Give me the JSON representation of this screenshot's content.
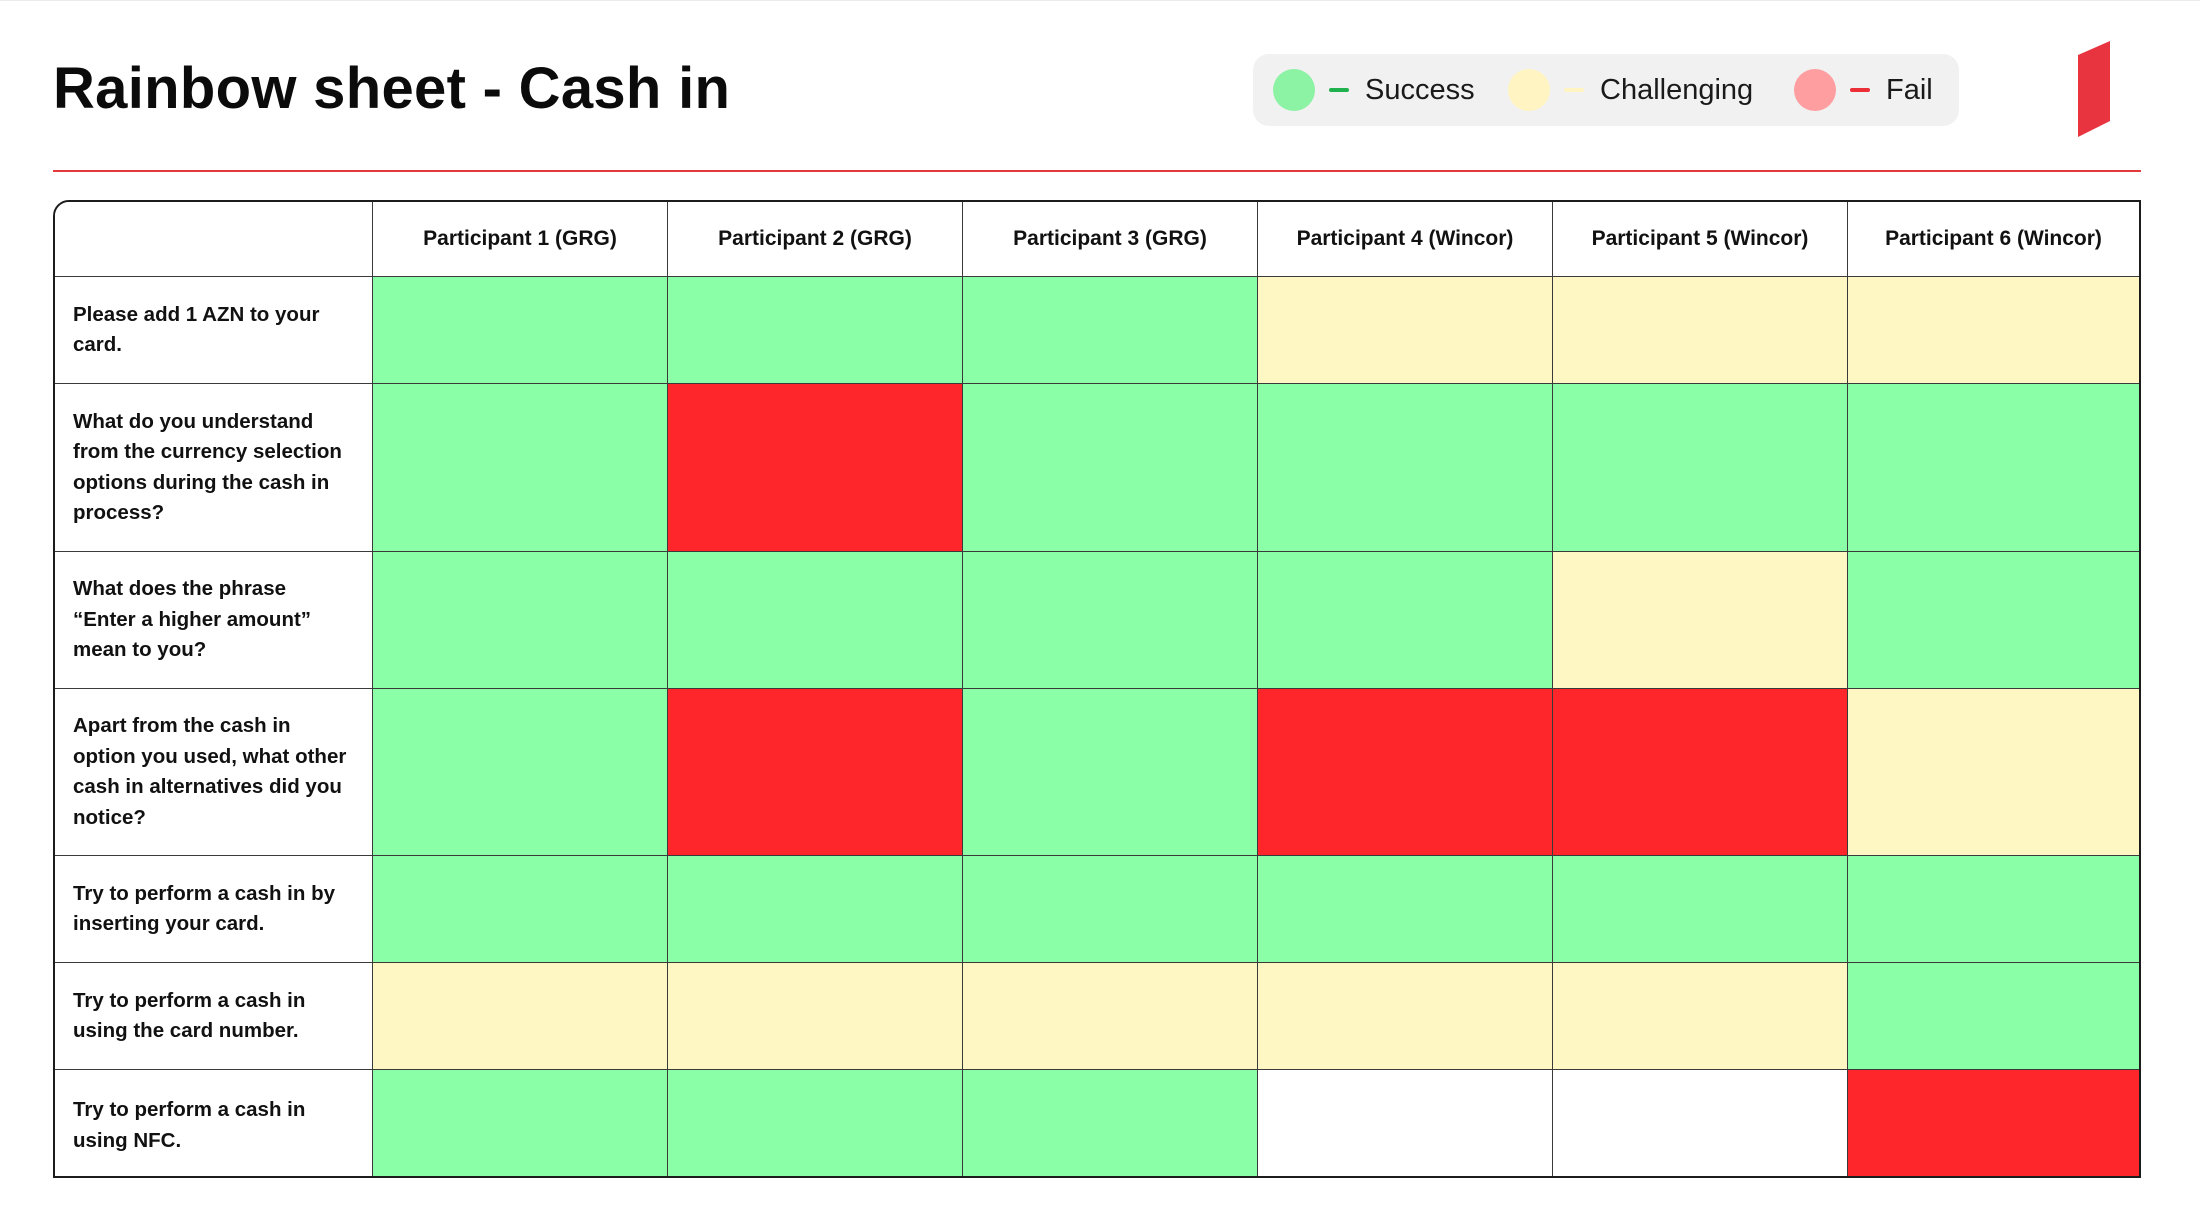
{
  "title": "Rainbow sheet - Cash in",
  "legend": [
    {
      "label": "Success",
      "dot_color": "#8cf2a4",
      "dash_color": "#1fb14d"
    },
    {
      "label": "Challenging",
      "dot_color": "#fff4c2",
      "dash_color": "#fff4c2"
    },
    {
      "label": "Fail",
      "dot_color": "#ff9ea0",
      "dash_color": "#ec2f36"
    }
  ],
  "colors": {
    "success": "#8bffa8",
    "challenging": "#fff7c3",
    "fail": "#fe262a",
    "none": "#ffffff",
    "divider": "#e23a3a",
    "brand": "#e8343f"
  },
  "brand_icon": "red-parallelogram-logo",
  "participants": [
    "Participant 1 (GRG)",
    "Participant 2 (GRG)",
    "Participant 3 (GRG)",
    "Participant 4 (Wincor)",
    "Participant 5 (Wincor)",
    "Participant 6 (Wincor)"
  ],
  "tasks": [
    {
      "lines": [
        "Please add 1 AZN to your",
        "card."
      ],
      "results": [
        "success",
        "success",
        "success",
        "challenging",
        "challenging",
        "challenging"
      ]
    },
    {
      "lines": [
        "What do you understand",
        "from the currency selection",
        "options during the cash in",
        "process?"
      ],
      "results": [
        "success",
        "fail",
        "success",
        "success",
        "success",
        "success"
      ]
    },
    {
      "lines": [
        "What does the phrase",
        "“Enter a higher amount”",
        "mean to you?"
      ],
      "results": [
        "success",
        "success",
        "success",
        "success",
        "challenging",
        "success"
      ]
    },
    {
      "lines": [
        "Apart from the cash in",
        "option you used, what other",
        "cash in alternatives did you",
        "notice?"
      ],
      "results": [
        "success",
        "fail",
        "success",
        "fail",
        "fail",
        "challenging"
      ]
    },
    {
      "lines": [
        "Try to perform a cash in by",
        "inserting your card."
      ],
      "results": [
        "success",
        "success",
        "success",
        "success",
        "success",
        "success"
      ]
    },
    {
      "lines": [
        "Try to perform a cash in",
        "using the card number."
      ],
      "results": [
        "challenging",
        "challenging",
        "challenging",
        "challenging",
        "challenging",
        "success"
      ]
    },
    {
      "lines": [
        "Try to perform a cash in",
        "using NFC."
      ],
      "results": [
        "success",
        "success",
        "success",
        "none",
        "none",
        "fail"
      ]
    }
  ]
}
